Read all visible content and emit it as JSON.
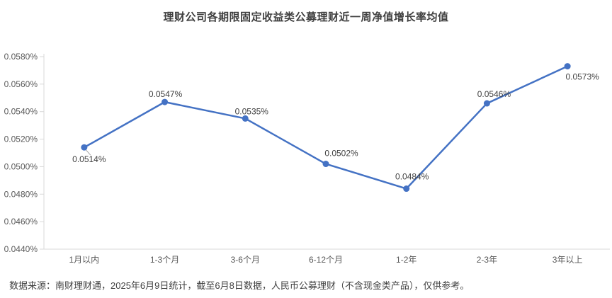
{
  "title": "理财公司各期限固定收益类公募理财近一周净值增长率均值",
  "footer": "数据来源：南财理财通，2025年6月9日统计，截至6月8日数据，人民币公募理财（不含现金类产品），仅供参考。",
  "colors": {
    "line": "#4472C4",
    "marker": "#4472C4",
    "axis": "#D9D9D9",
    "tick_label": "#595959",
    "data_label": "#404040",
    "title": "#404040",
    "footer": "#404040",
    "leader": "#A6A6A6",
    "background": "#FFFFFF"
  },
  "chart_data": {
    "type": "line",
    "title": "理财公司各期限固定收益类公募理财近一周净值增长率均值",
    "categories": [
      "1月以内",
      "1-3个月",
      "3-6个月",
      "6-12个月",
      "1-2年",
      "2-3年",
      "3年以上"
    ],
    "values": [
      0.0514,
      0.0547,
      0.0535,
      0.0502,
      0.0484,
      0.0546,
      0.0573
    ],
    "data_labels": [
      "0.0514%",
      "0.0547%",
      "0.0535%",
      "0.0502%",
      "0.0484%",
      "0.0546%",
      "0.0573%"
    ],
    "xlabel": "",
    "ylabel": "",
    "ylim": [
      0.044,
      0.058
    ],
    "ytick_step": 0.002,
    "ytick_labels": [
      "0.0440%",
      "0.0460%",
      "0.0480%",
      "0.0500%",
      "0.0520%",
      "0.0540%",
      "0.0560%",
      "0.0580%"
    ],
    "grid": false,
    "legend": "none",
    "marker": "circle"
  }
}
